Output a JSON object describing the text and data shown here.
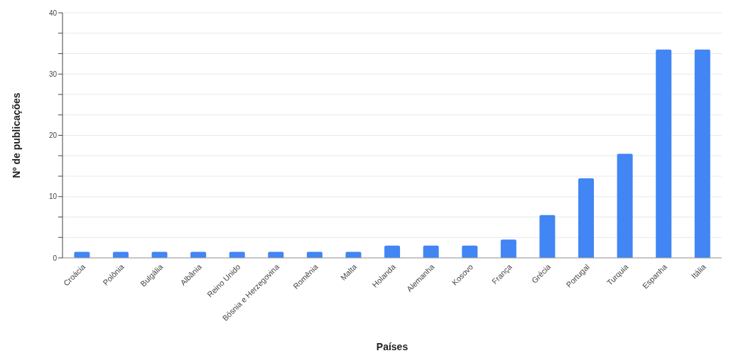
{
  "chart_data": {
    "type": "bar",
    "xlabel": "Países",
    "ylabel": "Nº de publicações",
    "categories": [
      "Croácia",
      "Polônia",
      "Bulgália",
      "Albânia",
      "Reino Unido",
      "Bósnia e Herzegovina",
      "Romênia",
      "Malta",
      "Holanda",
      "Alemanha",
      "Kosovo",
      "França",
      "Grécia",
      "Portugal",
      "Turquia",
      "Espanha",
      "Itália"
    ],
    "values": [
      1,
      1,
      1,
      1,
      1,
      1,
      1,
      1,
      2,
      2,
      2,
      3,
      7,
      13,
      17,
      34,
      34
    ],
    "color": "#4285f4",
    "ylim": [
      0,
      40
    ],
    "yticks": [
      0,
      {
        "value": 3.33,
        "label": null
      },
      {
        "value": 6.67,
        "label": null
      },
      10,
      {
        "value": 13.33,
        "label": null
      },
      {
        "value": 16.67,
        "label": null
      },
      20,
      {
        "value": 23.33,
        "label": null
      },
      {
        "value": 26.67,
        "label": null
      },
      30,
      {
        "value": 33.33,
        "label": null
      },
      {
        "value": 36.67,
        "label": null
      },
      40
    ],
    "grid": "y"
  }
}
